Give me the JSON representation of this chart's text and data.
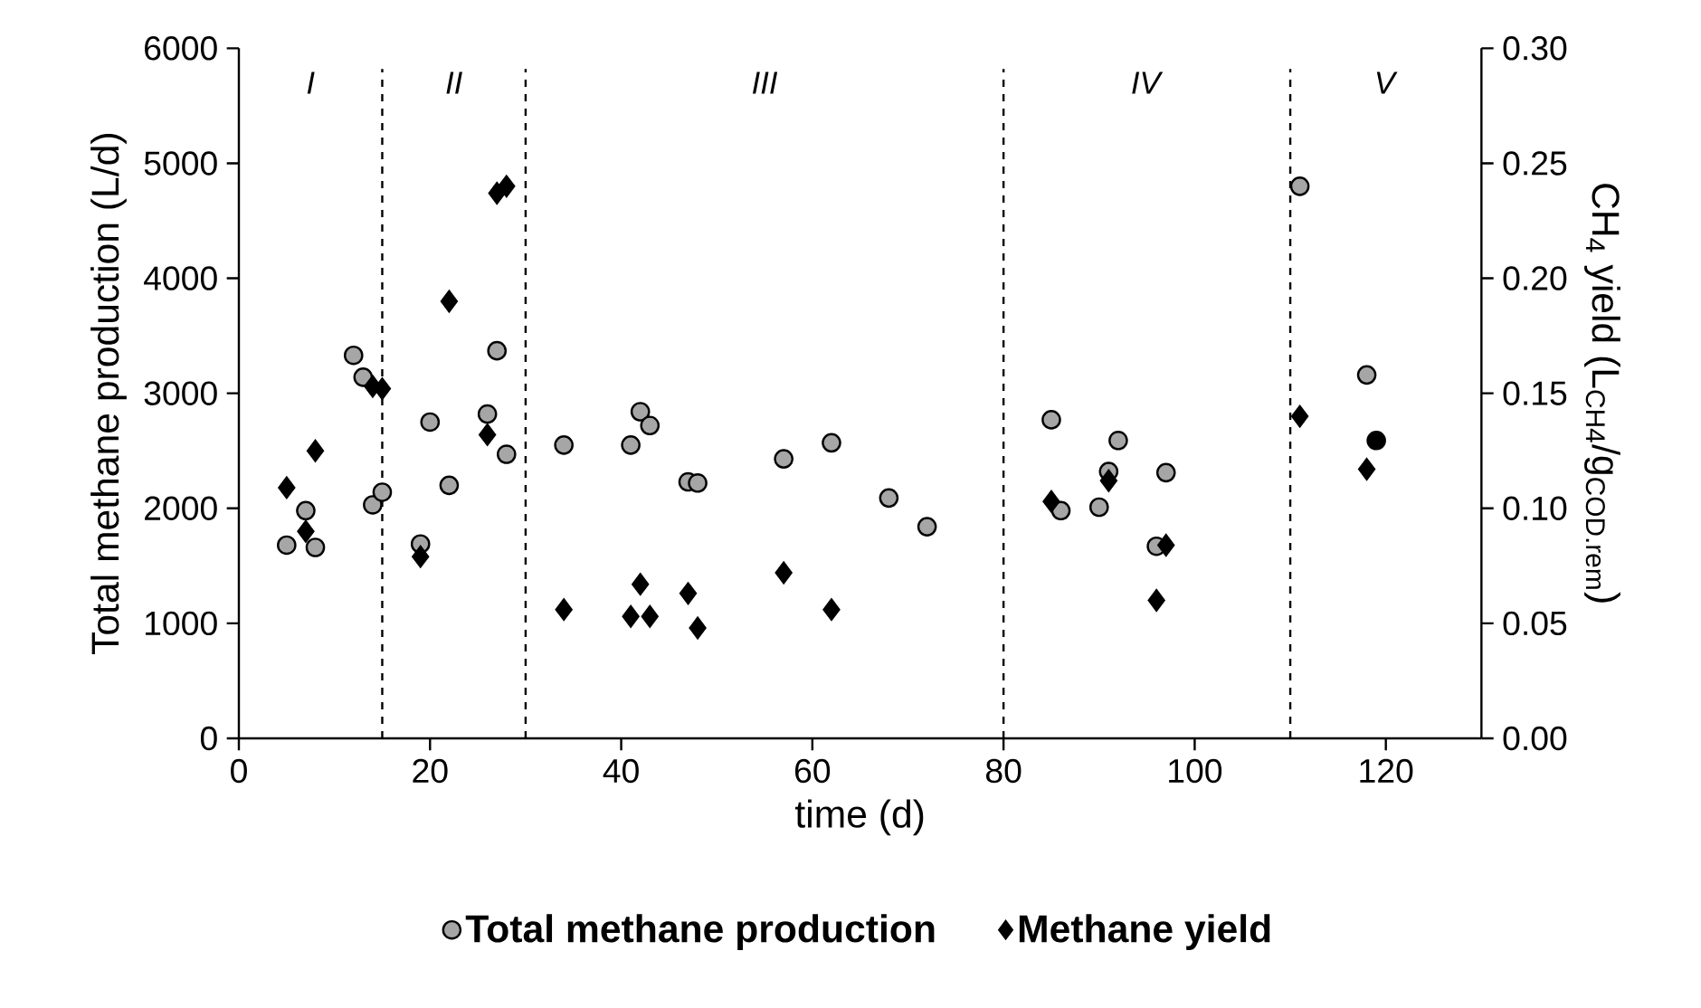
{
  "chart_data": {
    "type": "scatter",
    "xlabel": "time (d)",
    "ylabel": "Total methane production (L/d)",
    "y2label": "CH$_{4}$ yield (L$_{CH4}$/g$_{COD.rem}$)",
    "xlim": [
      0,
      130
    ],
    "xticks": [
      0,
      20,
      40,
      60,
      80,
      100,
      120
    ],
    "ylim": [
      0,
      6000
    ],
    "yticks": [
      0,
      1000,
      2000,
      3000,
      4000,
      5000,
      6000
    ],
    "y2lim": [
      0,
      0.3
    ],
    "y2ticks": [
      {
        "value": 0,
        "label": "0.00"
      },
      {
        "value": 0.05,
        "label": "0.05"
      },
      {
        "value": 0.1,
        "label": "0.10"
      },
      {
        "value": 0.15,
        "label": "0.15"
      },
      {
        "value": 0.2,
        "label": "0.20"
      },
      {
        "value": 0.25,
        "label": "0.25"
      },
      {
        "value": 0.3,
        "label": "0.30"
      }
    ],
    "legend": "bottom",
    "grid": false,
    "series": [
      {
        "name": "Total methane production",
        "marker": "circle",
        "color": "#a6a6a6",
        "x": [
          5,
          7,
          8,
          12,
          13,
          14,
          15,
          19,
          20,
          22,
          26,
          27,
          28,
          34,
          41,
          42,
          43,
          47,
          48,
          57,
          62,
          68,
          72,
          85,
          86,
          90,
          91,
          92,
          96,
          97,
          111,
          118
        ],
        "values": [
          1680,
          1980,
          1660,
          3330,
          3140,
          2030,
          2140,
          1690,
          2750,
          2200,
          2820,
          3370,
          2470,
          2550,
          2550,
          2840,
          2720,
          2230,
          2220,
          2430,
          2570,
          2090,
          1840,
          2770,
          1980,
          2010,
          2320,
          2590,
          1670,
          2310,
          4800,
          3160
        ]
      },
      {
        "name": "Methane yield",
        "marker": "diamond",
        "color": "#000000",
        "axis": "y2",
        "x": [
          5,
          7,
          8,
          14,
          15,
          19,
          22,
          26,
          27,
          28,
          34,
          41,
          42,
          43,
          47,
          48,
          57,
          62,
          85,
          91,
          96,
          97,
          111,
          118
        ],
        "values": [
          0.109,
          0.09,
          0.125,
          0.153,
          0.152,
          0.079,
          0.19,
          0.132,
          0.237,
          0.24,
          0.056,
          0.053,
          0.067,
          0.053,
          0.063,
          0.048,
          0.072,
          0.056,
          0.103,
          0.112,
          0.06,
          0.084,
          0.14,
          0.117
        ]
      },
      {
        "marker": "circle",
        "color": "#000000",
        "x": [
          119
        ],
        "values": [
          2590
        ]
      }
    ],
    "ref_lines": [
      {
        "axis": "x",
        "value": 15,
        "line_style": "dashed"
      },
      {
        "axis": "x",
        "value": 30,
        "line_style": "dashed"
      },
      {
        "axis": "x",
        "value": 80,
        "line_style": "dashed"
      },
      {
        "axis": "x",
        "value": 110,
        "line_style": "dashed"
      }
    ],
    "annotations": [
      "*I*",
      "*II*",
      "*III*",
      "*IV*",
      "*V*"
    ]
  }
}
